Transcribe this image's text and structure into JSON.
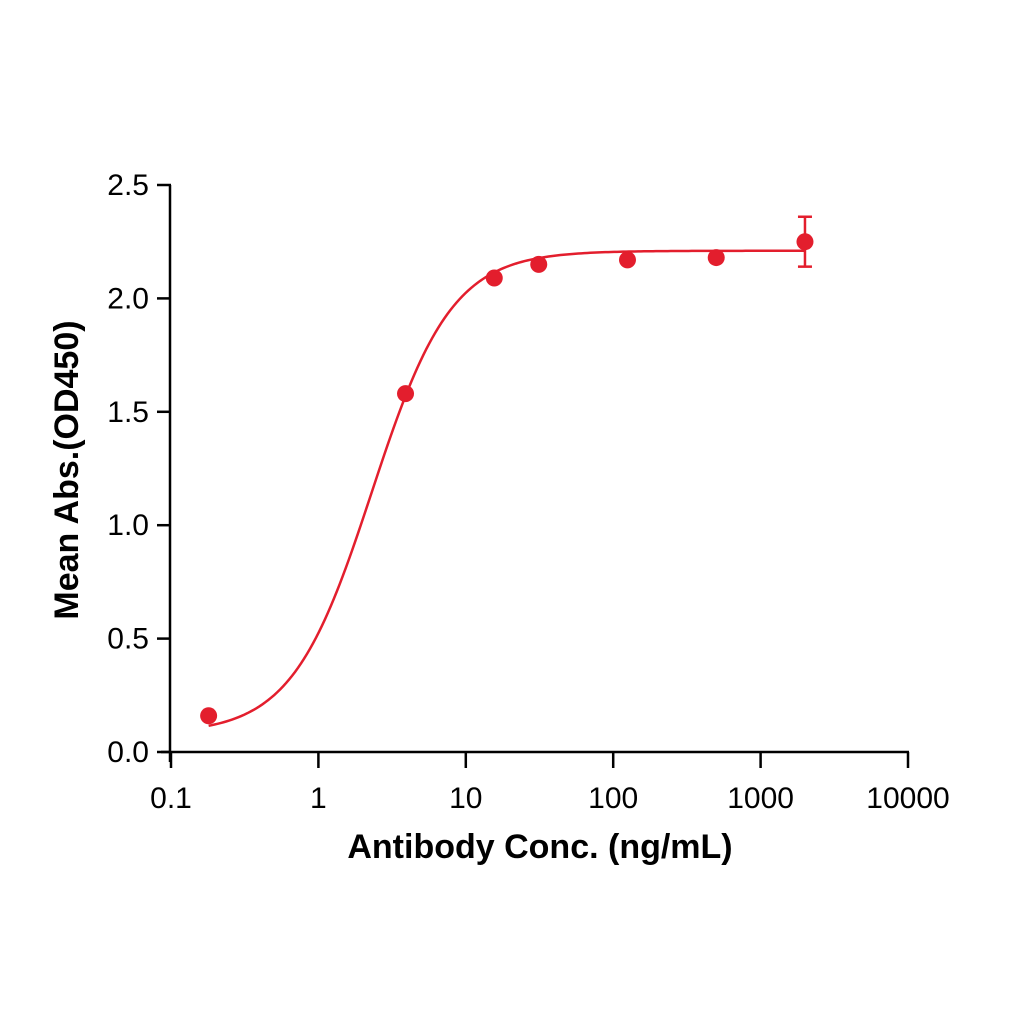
{
  "chart_data": {
    "type": "scatter",
    "title": "",
    "xlabel": "Antibody Conc. (ng/mL)",
    "ylabel": "Mean Abs.(OD450)",
    "xscale": "log",
    "xlim": [
      0.1,
      10000
    ],
    "ylim": [
      0,
      2.5
    ],
    "x_ticks": [
      "0.1",
      "1",
      "10",
      "100",
      "1000",
      "10000"
    ],
    "y_ticks": [
      "0.0",
      "0.5",
      "1.0",
      "1.5",
      "2.0",
      "2.5"
    ],
    "grid": false,
    "legend": null,
    "color": "#e31e2d",
    "series": [
      {
        "name": "Mean Abs.",
        "x": [
          0.18,
          3.9,
          15.6,
          31.25,
          125,
          500,
          2000
        ],
        "y": [
          0.16,
          1.58,
          2.09,
          2.15,
          2.17,
          2.18,
          2.25
        ],
        "error": [
          0,
          0,
          0,
          0,
          0,
          0,
          0.11
        ]
      }
    ],
    "fit": {
      "type": "4PL sigmoid",
      "bottom": 0.08,
      "top": 2.21,
      "ec50": 2.3,
      "hill": 1.6
    }
  }
}
